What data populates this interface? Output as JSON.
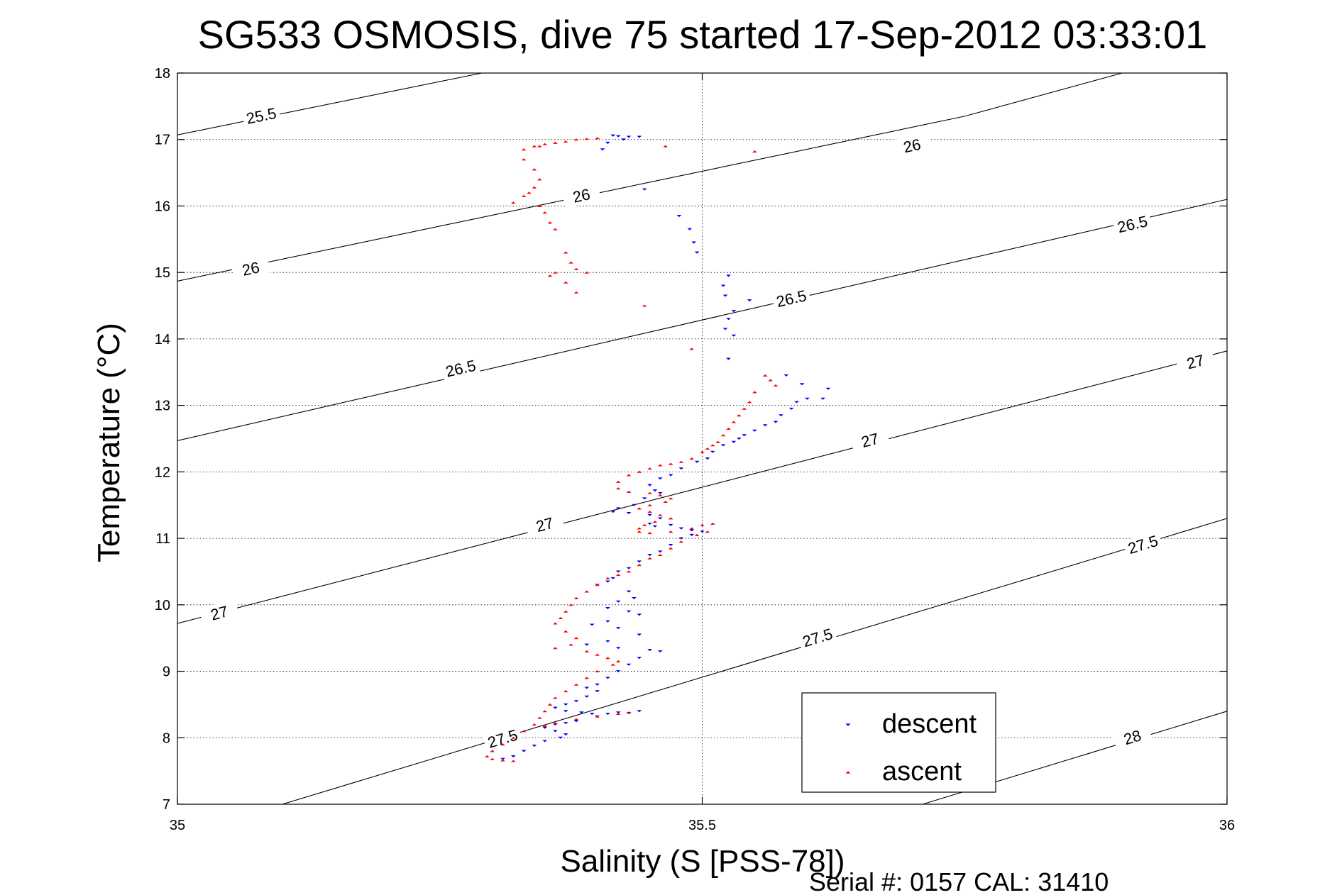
{
  "chart_data": {
    "type": "scatter",
    "title": "SG533 OSMOSIS, dive 75 started 17-Sep-2012 03:33:01",
    "xlabel": "Salinity (S [PSS-78])",
    "ylabel": "Temperature (°C)",
    "xlim": [
      35,
      36
    ],
    "ylim": [
      7,
      18
    ],
    "x_ticks": [
      "35",
      "35.5",
      "36"
    ],
    "y_ticks": [
      "7",
      "8",
      "9",
      "10",
      "11",
      "12",
      "13",
      "14",
      "15",
      "16",
      "17",
      "18"
    ],
    "grid": true,
    "legend_position": "bottom-right",
    "contours": [
      {
        "label": "25.5",
        "line": [
          [
            35.0,
            17.07
          ],
          [
            35.29,
            18.0
          ]
        ],
        "labels_at": [
          [
            35.08,
            17.35
          ]
        ]
      },
      {
        "label": "26",
        "line": [
          [
            35.0,
            14.87
          ],
          [
            35.75,
            17.35
          ],
          [
            35.9,
            18.0
          ]
        ],
        "labels_at": [
          [
            35.07,
            15.05
          ],
          [
            35.385,
            16.15
          ],
          [
            35.7,
            16.9
          ]
        ]
      },
      {
        "label": "26.5",
        "line": [
          [
            35.0,
            12.47
          ],
          [
            36.0,
            16.1
          ]
        ],
        "labels_at": [
          [
            35.27,
            13.55
          ],
          [
            35.585,
            14.6
          ],
          [
            35.91,
            15.72
          ]
        ]
      },
      {
        "label": "27",
        "line": [
          [
            35.0,
            9.72
          ],
          [
            36.0,
            13.82
          ]
        ],
        "labels_at": [
          [
            35.04,
            9.87
          ],
          [
            35.35,
            11.2
          ],
          [
            35.66,
            12.47
          ],
          [
            35.97,
            13.65
          ]
        ]
      },
      {
        "label": "27.5",
        "line": [
          [
            35.1,
            7.0
          ],
          [
            36.0,
            11.3
          ]
        ],
        "labels_at": [
          [
            35.31,
            7.98
          ],
          [
            35.61,
            9.5
          ],
          [
            35.92,
            10.9
          ]
        ]
      },
      {
        "label": "28",
        "line": [
          [
            35.71,
            7.0
          ],
          [
            36.0,
            8.4
          ]
        ],
        "labels_at": [
          [
            35.91,
            8.0
          ]
        ]
      }
    ],
    "series": [
      {
        "name": "descent",
        "color": "#0000ff",
        "marker": "triangle-down",
        "points": [
          [
            35.415,
            17.06
          ],
          [
            35.42,
            17.05
          ],
          [
            35.43,
            17.04
          ],
          [
            35.44,
            17.04
          ],
          [
            35.425,
            17.0
          ],
          [
            35.41,
            16.95
          ],
          [
            35.405,
            16.85
          ],
          [
            35.445,
            16.25
          ],
          [
            35.478,
            15.85
          ],
          [
            35.488,
            15.65
          ],
          [
            35.492,
            15.45
          ],
          [
            35.495,
            15.3
          ],
          [
            35.525,
            14.95
          ],
          [
            35.52,
            14.8
          ],
          [
            35.522,
            14.65
          ],
          [
            35.545,
            14.58
          ],
          [
            35.53,
            14.42
          ],
          [
            35.525,
            14.3
          ],
          [
            35.522,
            14.15
          ],
          [
            35.53,
            14.05
          ],
          [
            35.525,
            13.7
          ],
          [
            35.58,
            13.45
          ],
          [
            35.595,
            13.32
          ],
          [
            35.62,
            13.25
          ],
          [
            35.615,
            13.1
          ],
          [
            35.6,
            13.1
          ],
          [
            35.59,
            13.05
          ],
          [
            35.585,
            12.95
          ],
          [
            35.575,
            12.85
          ],
          [
            35.57,
            12.75
          ],
          [
            35.56,
            12.7
          ],
          [
            35.55,
            12.62
          ],
          [
            35.54,
            12.55
          ],
          [
            35.535,
            12.5
          ],
          [
            35.53,
            12.45
          ],
          [
            35.52,
            12.4
          ],
          [
            35.51,
            12.3
          ],
          [
            35.505,
            12.2
          ],
          [
            35.495,
            12.15
          ],
          [
            35.48,
            12.05
          ],
          [
            35.47,
            11.95
          ],
          [
            35.46,
            11.9
          ],
          [
            35.45,
            11.8
          ],
          [
            35.455,
            11.72
          ],
          [
            35.46,
            11.68
          ],
          [
            35.445,
            11.6
          ],
          [
            35.435,
            11.5
          ],
          [
            35.42,
            11.45
          ],
          [
            35.415,
            11.4
          ],
          [
            35.43,
            11.38
          ],
          [
            35.45,
            11.35
          ],
          [
            35.46,
            11.3
          ],
          [
            35.45,
            11.22
          ],
          [
            35.455,
            11.18
          ],
          [
            35.47,
            11.2
          ],
          [
            35.48,
            11.15
          ],
          [
            35.49,
            11.12
          ],
          [
            35.5,
            11.1
          ],
          [
            35.49,
            11.05
          ],
          [
            35.48,
            11.0
          ],
          [
            35.47,
            10.9
          ],
          [
            35.46,
            10.8
          ],
          [
            35.45,
            10.75
          ],
          [
            35.44,
            10.65
          ],
          [
            35.43,
            10.55
          ],
          [
            35.42,
            10.5
          ],
          [
            35.415,
            10.4
          ],
          [
            35.41,
            10.35
          ],
          [
            35.4,
            10.3
          ],
          [
            35.43,
            10.2
          ],
          [
            35.435,
            10.1
          ],
          [
            35.42,
            10.05
          ],
          [
            35.41,
            9.95
          ],
          [
            35.43,
            9.9
          ],
          [
            35.44,
            9.85
          ],
          [
            35.41,
            9.75
          ],
          [
            35.395,
            9.7
          ],
          [
            35.42,
            9.65
          ],
          [
            35.44,
            9.55
          ],
          [
            35.41,
            9.45
          ],
          [
            35.39,
            9.4
          ],
          [
            35.42,
            9.35
          ],
          [
            35.45,
            9.32
          ],
          [
            35.46,
            9.3
          ],
          [
            35.44,
            9.2
          ],
          [
            35.43,
            9.1
          ],
          [
            35.42,
            9.0
          ],
          [
            35.41,
            8.9
          ],
          [
            35.4,
            8.8
          ],
          [
            35.39,
            8.75
          ],
          [
            35.4,
            8.7
          ],
          [
            35.39,
            8.62
          ],
          [
            35.38,
            8.55
          ],
          [
            35.37,
            8.5
          ],
          [
            35.36,
            8.45
          ],
          [
            35.37,
            8.4
          ],
          [
            35.385,
            8.38
          ],
          [
            35.395,
            8.36
          ],
          [
            35.41,
            8.36
          ],
          [
            35.43,
            8.37
          ],
          [
            35.44,
            8.4
          ],
          [
            35.42,
            8.38
          ],
          [
            35.4,
            8.32
          ],
          [
            35.38,
            8.25
          ],
          [
            35.37,
            8.22
          ],
          [
            35.36,
            8.2
          ],
          [
            35.35,
            8.15
          ],
          [
            35.36,
            8.1
          ],
          [
            35.37,
            8.05
          ],
          [
            35.365,
            8.0
          ],
          [
            35.35,
            7.95
          ],
          [
            35.34,
            7.88
          ],
          [
            35.33,
            7.8
          ],
          [
            35.32,
            7.72
          ],
          [
            35.31,
            7.68
          ]
        ]
      },
      {
        "name": "ascent",
        "color": "#ff0000",
        "marker": "triangle-up",
        "points": [
          [
            35.4,
            17.02
          ],
          [
            35.39,
            17.01
          ],
          [
            35.38,
            17.0
          ],
          [
            35.37,
            16.97
          ],
          [
            35.36,
            16.95
          ],
          [
            35.35,
            16.93
          ],
          [
            35.345,
            16.9
          ],
          [
            35.34,
            16.9
          ],
          [
            35.33,
            16.85
          ],
          [
            35.33,
            16.7
          ],
          [
            35.34,
            16.55
          ],
          [
            35.345,
            16.4
          ],
          [
            35.34,
            16.28
          ],
          [
            35.33,
            16.15
          ],
          [
            35.32,
            16.05
          ],
          [
            35.335,
            16.2
          ],
          [
            35.345,
            16.0
          ],
          [
            35.35,
            15.9
          ],
          [
            35.355,
            15.75
          ],
          [
            35.36,
            15.65
          ],
          [
            35.465,
            16.9
          ],
          [
            35.55,
            16.82
          ],
          [
            35.37,
            15.3
          ],
          [
            35.375,
            15.15
          ],
          [
            35.38,
            15.05
          ],
          [
            35.39,
            15.0
          ],
          [
            35.36,
            15.0
          ],
          [
            35.355,
            14.95
          ],
          [
            35.37,
            14.85
          ],
          [
            35.38,
            14.7
          ],
          [
            35.445,
            14.5
          ],
          [
            35.49,
            13.85
          ],
          [
            35.56,
            13.45
          ],
          [
            35.565,
            13.38
          ],
          [
            35.57,
            13.3
          ],
          [
            35.55,
            13.2
          ],
          [
            35.545,
            13.05
          ],
          [
            35.54,
            12.95
          ],
          [
            35.535,
            12.85
          ],
          [
            35.53,
            12.75
          ],
          [
            35.525,
            12.65
          ],
          [
            35.52,
            12.55
          ],
          [
            35.515,
            12.45
          ],
          [
            35.51,
            12.4
          ],
          [
            35.505,
            12.35
          ],
          [
            35.5,
            12.3
          ],
          [
            35.49,
            12.2
          ],
          [
            35.48,
            12.15
          ],
          [
            35.47,
            12.12
          ],
          [
            35.46,
            12.1
          ],
          [
            35.45,
            12.05
          ],
          [
            35.44,
            12.0
          ],
          [
            35.43,
            11.95
          ],
          [
            35.42,
            11.85
          ],
          [
            35.42,
            11.75
          ],
          [
            35.43,
            11.7
          ],
          [
            35.45,
            11.68
          ],
          [
            35.46,
            11.65
          ],
          [
            35.47,
            11.6
          ],
          [
            35.465,
            11.55
          ],
          [
            35.45,
            11.5
          ],
          [
            35.44,
            11.45
          ],
          [
            35.45,
            11.4
          ],
          [
            35.46,
            11.35
          ],
          [
            35.47,
            11.3
          ],
          [
            35.455,
            11.25
          ],
          [
            35.445,
            11.2
          ],
          [
            35.44,
            11.15
          ],
          [
            35.44,
            11.1
          ],
          [
            35.45,
            11.08
          ],
          [
            35.47,
            11.1
          ],
          [
            35.49,
            11.15
          ],
          [
            35.5,
            11.2
          ],
          [
            35.51,
            11.22
          ],
          [
            35.505,
            11.1
          ],
          [
            35.495,
            11.05
          ],
          [
            35.48,
            10.95
          ],
          [
            35.47,
            10.85
          ],
          [
            35.46,
            10.75
          ],
          [
            35.45,
            10.7
          ],
          [
            35.44,
            10.6
          ],
          [
            35.43,
            10.5
          ],
          [
            35.42,
            10.45
          ],
          [
            35.41,
            10.4
          ],
          [
            35.4,
            10.3
          ],
          [
            35.39,
            10.2
          ],
          [
            35.38,
            10.1
          ],
          [
            35.375,
            10.0
          ],
          [
            35.37,
            9.9
          ],
          [
            35.365,
            9.8
          ],
          [
            35.36,
            9.72
          ],
          [
            35.37,
            9.6
          ],
          [
            35.38,
            9.5
          ],
          [
            35.375,
            9.4
          ],
          [
            35.36,
            9.35
          ],
          [
            35.39,
            9.3
          ],
          [
            35.4,
            9.25
          ],
          [
            35.41,
            9.2
          ],
          [
            35.42,
            9.15
          ],
          [
            35.415,
            9.1
          ],
          [
            35.4,
            9.0
          ],
          [
            35.39,
            8.9
          ],
          [
            35.38,
            8.8
          ],
          [
            35.37,
            8.7
          ],
          [
            35.36,
            8.6
          ],
          [
            35.355,
            8.5
          ],
          [
            35.35,
            8.4
          ],
          [
            35.345,
            8.3
          ],
          [
            35.34,
            8.2
          ],
          [
            35.35,
            8.18
          ],
          [
            35.36,
            8.22
          ],
          [
            35.38,
            8.28
          ],
          [
            35.4,
            8.32
          ],
          [
            35.42,
            8.36
          ],
          [
            35.43,
            8.38
          ],
          [
            35.33,
            8.1
          ],
          [
            35.32,
            8.0
          ],
          [
            35.31,
            7.9
          ],
          [
            35.3,
            7.8
          ],
          [
            35.295,
            7.72
          ],
          [
            35.3,
            7.68
          ],
          [
            35.31,
            7.66
          ],
          [
            35.32,
            7.65
          ]
        ]
      }
    ]
  },
  "footer": {
    "serial": "Serial #: 0157  CAL: 31410"
  },
  "legend": {
    "descent_label": "descent",
    "ascent_label": "ascent"
  }
}
